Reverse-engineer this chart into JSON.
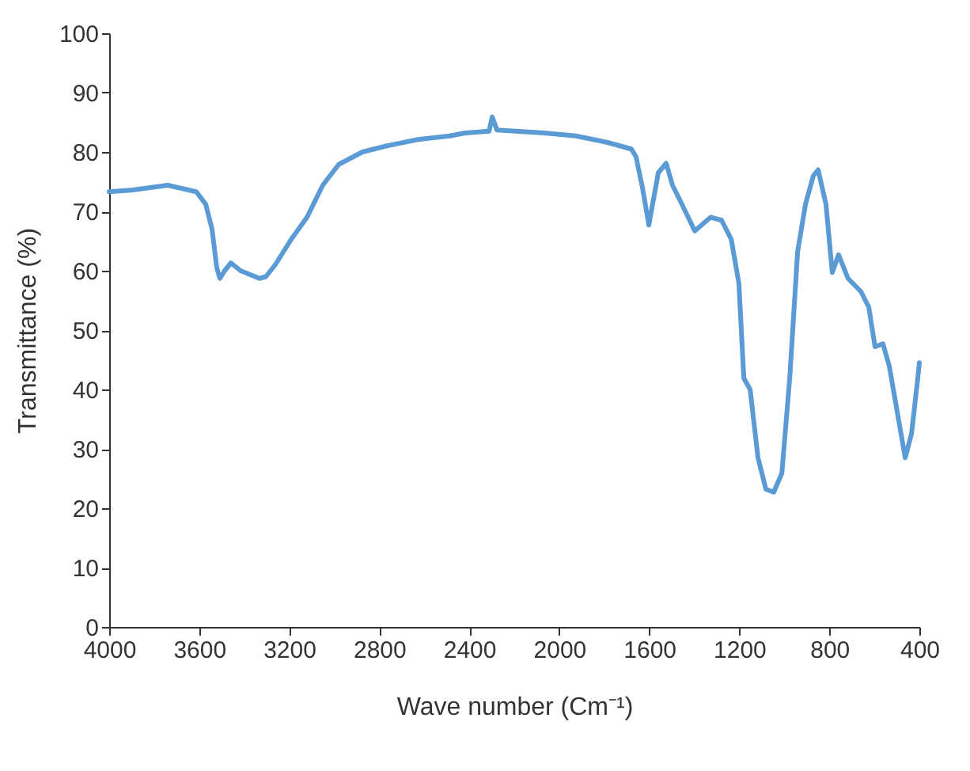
{
  "chart_data": {
    "type": "line",
    "xlabel": "Wave number (Cm⁻¹)",
    "ylabel": "Transmittance (%)",
    "xlim": [
      4000,
      400
    ],
    "xticks": [
      4000,
      3600,
      3200,
      2800,
      2400,
      2000,
      1600,
      1200,
      800,
      400
    ],
    "ylim": [
      0,
      100
    ],
    "yticks": [
      0,
      10,
      20,
      30,
      40,
      50,
      60,
      70,
      80,
      90,
      100
    ],
    "grid": false,
    "marker": "none",
    "line_style": "solid",
    "series": [
      {
        "color": "#5b9bd5",
        "x": [
          4000,
          3895,
          3740,
          3613,
          3571,
          3543,
          3522,
          3508,
          3487,
          3459,
          3416,
          3332,
          3304,
          3262,
          3191,
          3121,
          3051,
          2980,
          2875,
          2770,
          2629,
          2488,
          2418,
          2312,
          2298,
          2277,
          2066,
          1926,
          1785,
          1680,
          1659,
          1630,
          1602,
          1560,
          1525,
          1497,
          1455,
          1398,
          1328,
          1279,
          1236,
          1202,
          1180,
          1152,
          1117,
          1082,
          1047,
          1011,
          976,
          941,
          906,
          871,
          850,
          815,
          787,
          759,
          717,
          660,
          625,
          597,
          562,
          534,
          506,
          463,
          435,
          407,
          400
        ],
        "values": [
          73.3,
          73.6,
          74.4,
          73.3,
          71.2,
          67,
          60.5,
          58.7,
          60,
          61.3,
          60,
          58.7,
          59,
          61,
          65.3,
          69,
          74.4,
          77.9,
          80,
          81,
          82.1,
          82.7,
          83.2,
          83.5,
          85.9,
          83.7,
          83.2,
          82.7,
          81.6,
          80.5,
          79.2,
          73.9,
          67.7,
          76.5,
          78.1,
          74.4,
          71.2,
          66.7,
          69,
          68.5,
          65.3,
          57.9,
          41.9,
          40,
          28.5,
          23.2,
          22.7,
          25.9,
          41.9,
          63.2,
          71.2,
          76,
          77,
          71.2,
          59.7,
          62.7,
          58.7,
          56.5,
          53.9,
          47.2,
          47.7,
          44,
          37.9,
          28.5,
          32.5,
          41.9,
          44.5
        ]
      }
    ]
  }
}
